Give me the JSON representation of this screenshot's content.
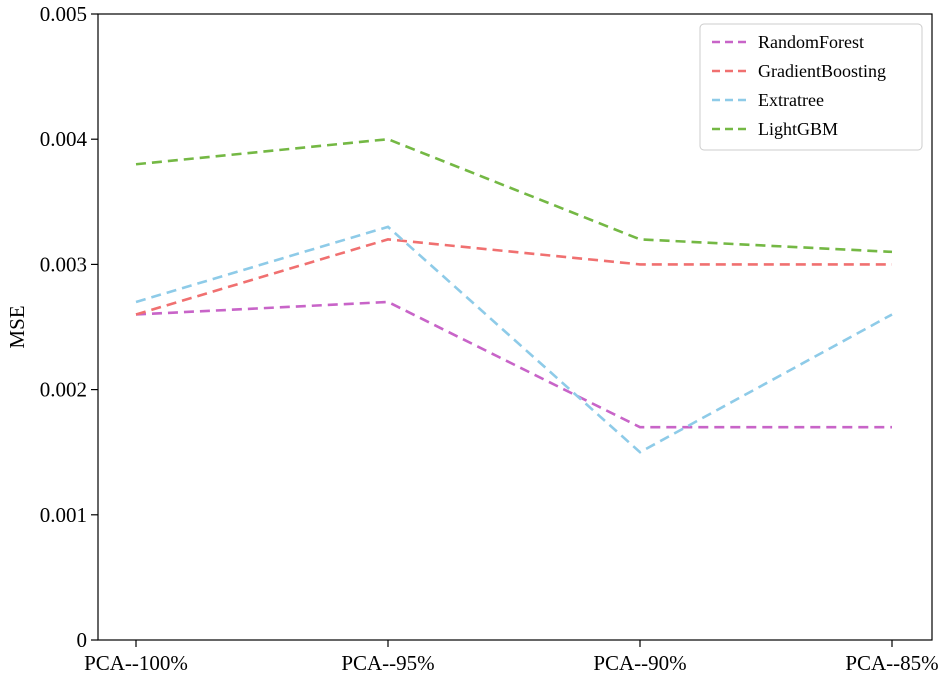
{
  "chart_data": {
    "type": "line",
    "title": "",
    "xlabel": "",
    "ylabel": "MSE",
    "categories": [
      "PCA--100%",
      "PCA--95%",
      "PCA--90%",
      "PCA--85%"
    ],
    "ylim": [
      0,
      0.005
    ],
    "yticks": [
      "0",
      "0.001",
      "0.002",
      "0.003",
      "0.004",
      "0.005"
    ],
    "grid": false,
    "legend_position": "top-right",
    "line_style": "dashed",
    "series": [
      {
        "name": "RandomForest",
        "color": "#c864c8",
        "values": [
          0.0026,
          0.0027,
          0.0017,
          0.0017
        ]
      },
      {
        "name": "GradientBoosting",
        "color": "#f07070",
        "values": [
          0.0026,
          0.0032,
          0.003,
          0.003
        ]
      },
      {
        "name": "Extratree",
        "color": "#8ecbe8",
        "values": [
          0.0027,
          0.0033,
          0.0015,
          0.0026
        ]
      },
      {
        "name": "LightGBM",
        "color": "#74b844",
        "values": [
          0.0038,
          0.004,
          0.0032,
          0.0031
        ]
      }
    ]
  }
}
